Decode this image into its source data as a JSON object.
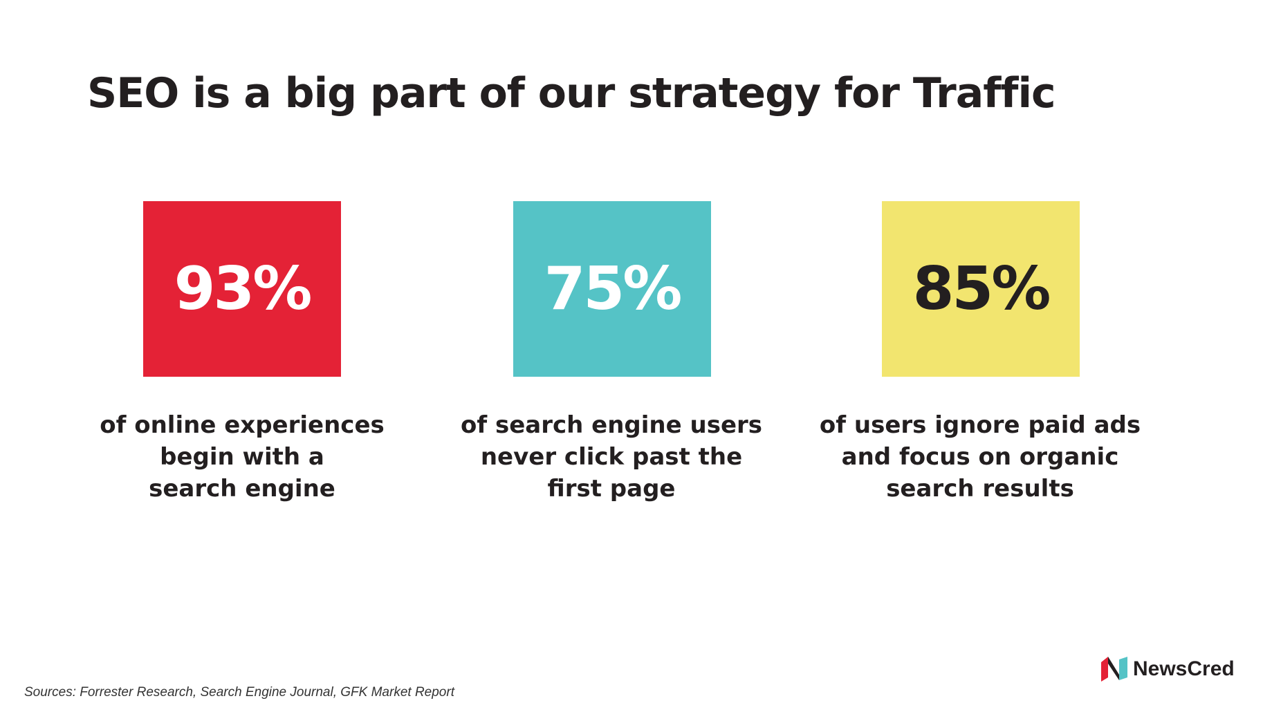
{
  "header": {
    "title": "SEO is a big part of our strategy for Traffic"
  },
  "stats": [
    {
      "value": "93%",
      "lines": [
        "of online experiences",
        "begin with a",
        "search engine"
      ]
    },
    {
      "value": "75%",
      "lines": [
        "of search engine users",
        "never click past the",
        "first page"
      ]
    },
    {
      "value": "85%",
      "lines": [
        "of users ignore paid ads",
        "and focus on organic",
        "search results"
      ]
    }
  ],
  "footer": {
    "sources": "Sources: Forrester Research, Search Engine Journal, GFK Market Report",
    "logo": "NewsCred"
  }
}
